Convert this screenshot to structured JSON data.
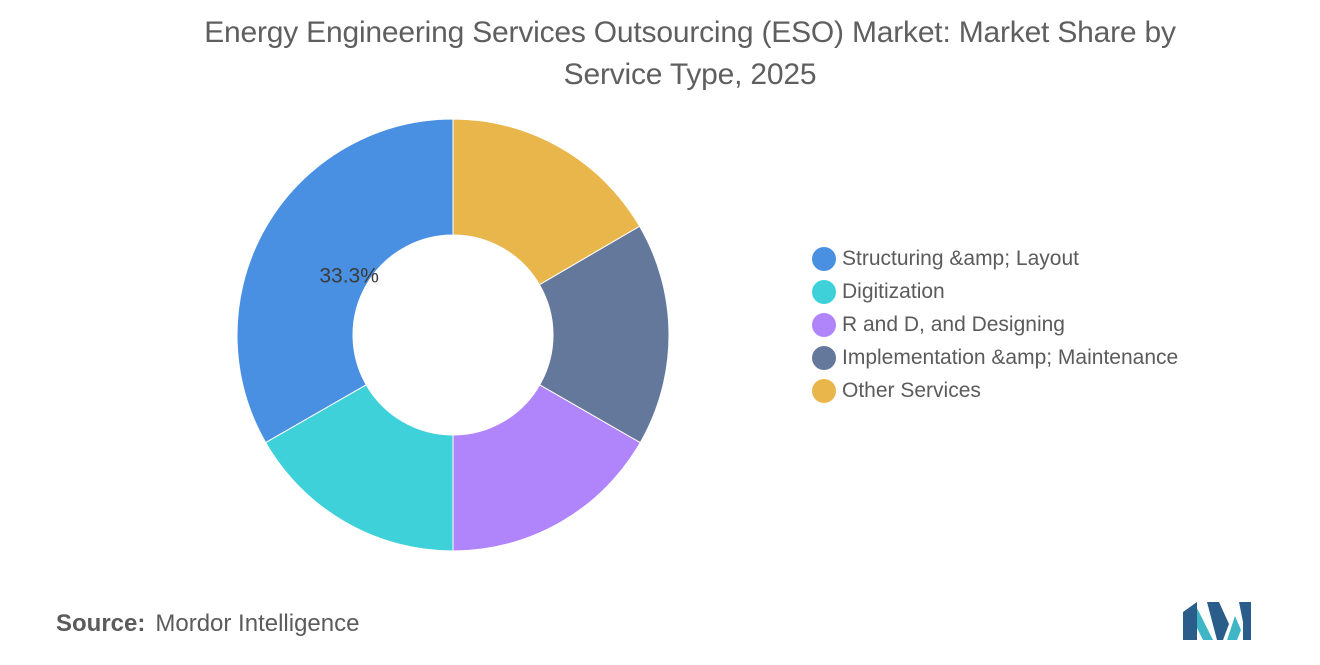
{
  "chart_data": {
    "type": "pie",
    "donut": true,
    "title_line1": "Energy Engineering Services Outsourcing (ESO) Market: Market Share by",
    "title_line2": "Service Type, 2025",
    "categories": [
      "Structuring &amp; Layout",
      "Digitization",
      "R and D, and Designing",
      "Implementation &amp; Maintenance",
      "Other Services"
    ],
    "values": [
      33.3,
      16.7,
      16.7,
      16.7,
      16.6
    ],
    "colors": [
      "#4a90e2",
      "#3fd1da",
      "#b085fb",
      "#64789c",
      "#e9b64c"
    ],
    "data_labels": [
      "33.3%",
      "",
      "",
      "",
      ""
    ],
    "legend_position": "right"
  },
  "source": {
    "label": "Source:",
    "text": "Mordor Intelligence"
  },
  "logo": {
    "icon": "mordor-intelligence-logo",
    "colors": [
      "#2a5d8a",
      "#3fb6c6"
    ]
  }
}
